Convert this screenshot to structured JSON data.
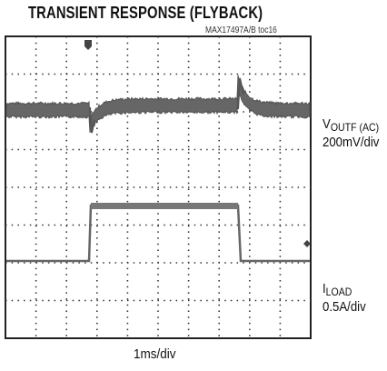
{
  "header": {
    "title": "TRANSIENT RESPONSE (FLYBACK)",
    "reference": "MAX17497A/B toc16"
  },
  "channels": [
    {
      "label": "V",
      "subscript": "OUTF (AC)",
      "scale": "200mV/div"
    },
    {
      "label": "I",
      "subscript": "LOAD",
      "scale": "0.5A/div"
    }
  ],
  "timebase": "1ms/div"
}
